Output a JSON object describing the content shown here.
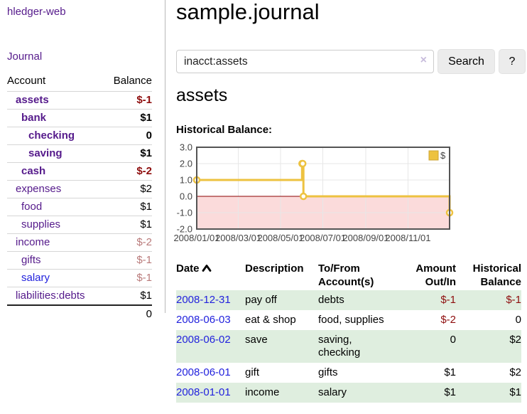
{
  "app": {
    "brand": "hledger-web",
    "nav_journal": "Journal"
  },
  "sidebar": {
    "account_header": "Account",
    "balance_header": "Balance",
    "accounts": [
      {
        "name": "assets",
        "depth": 0,
        "bold": true,
        "link": "purple",
        "balance": "$-1",
        "balance_style": "neg-strong"
      },
      {
        "name": "bank",
        "depth": 1,
        "bold": true,
        "link": "purple",
        "balance": "$1",
        "balance_style": "pos"
      },
      {
        "name": "checking",
        "depth": 2,
        "bold": true,
        "link": "purple",
        "balance": "0",
        "balance_style": "pos"
      },
      {
        "name": "saving",
        "depth": 2,
        "bold": true,
        "link": "purple",
        "balance": "$1",
        "balance_style": "pos"
      },
      {
        "name": "cash",
        "depth": 1,
        "bold": true,
        "link": "purple",
        "balance": "$-2",
        "balance_style": "neg-strong"
      },
      {
        "name": "expenses",
        "depth": 0,
        "bold": false,
        "link": "purple",
        "balance": "$2",
        "balance_style": "pos"
      },
      {
        "name": "food",
        "depth": 1,
        "bold": false,
        "link": "purple",
        "balance": "$1",
        "balance_style": "pos"
      },
      {
        "name": "supplies",
        "depth": 1,
        "bold": false,
        "link": "purple",
        "balance": "$1",
        "balance_style": "pos"
      },
      {
        "name": "income",
        "depth": 0,
        "bold": false,
        "link": "purple",
        "balance": "$-2",
        "balance_style": "neg-soft"
      },
      {
        "name": "gifts",
        "depth": 1,
        "bold": false,
        "link": "purple",
        "balance": "$-1",
        "balance_style": "neg-soft"
      },
      {
        "name": "salary",
        "depth": 1,
        "bold": false,
        "link": "blue",
        "balance": "$-1",
        "balance_style": "neg-soft"
      },
      {
        "name": "liabilities:debts",
        "depth": 0,
        "bold": false,
        "link": "purple",
        "balance": "$1",
        "balance_style": "pos"
      }
    ],
    "total": "0"
  },
  "header": {
    "title": "sample.journal"
  },
  "search": {
    "value": "inacct:assets",
    "clear_icon": "×",
    "button": "Search",
    "help": "?"
  },
  "account_page": {
    "title": "assets",
    "chart_label": "Historical Balance:"
  },
  "chart_data": {
    "type": "line",
    "step": true,
    "title": "Historical Balance",
    "legend_position": "top-right",
    "grid": true,
    "ylim": [
      -2,
      3
    ],
    "y_ticks": [
      3.0,
      2.0,
      1.0,
      0.0,
      -1.0,
      -2.0
    ],
    "x_range": [
      "2008/01/01",
      "2008/12/31"
    ],
    "x_ticks": [
      "2008/01/01",
      "2008/03/01",
      "2008/05/01",
      "2008/07/01",
      "2008/09/01",
      "2008/11/01"
    ],
    "series": [
      {
        "name": "$",
        "color": "#edc240",
        "points": [
          [
            "2008/01/01",
            1
          ],
          [
            "2008/06/01",
            2
          ],
          [
            "2008/06/02",
            2
          ],
          [
            "2008/06/03",
            0
          ],
          [
            "2008/12/31",
            -1
          ]
        ]
      }
    ],
    "negative_fill": "#fbdbdb",
    "zero_line_color": "#8b0000",
    "border_color": "#545454"
  },
  "register": {
    "columns": [
      {
        "label": "Date",
        "sort": "asc"
      },
      {
        "label": "Description"
      },
      {
        "label": "To/From Account(s)",
        "accts": true
      },
      {
        "label": "Amount Out/In",
        "align": "right"
      },
      {
        "label": "Historical Balance",
        "align": "right"
      }
    ],
    "rows": [
      {
        "date": "2008-12-31",
        "description": "pay off",
        "accounts": "debts",
        "amount": "$-1",
        "amount_neg": true,
        "balance": "$-1",
        "balance_neg": true
      },
      {
        "date": "2008-06-03",
        "description": "eat & shop",
        "accounts": "food, supplies",
        "amount": "$-2",
        "amount_neg": true,
        "balance": "0",
        "balance_neg": false
      },
      {
        "date": "2008-06-02",
        "description": "save",
        "accounts": "saving, checking",
        "amount": "0",
        "amount_neg": false,
        "balance": "$2",
        "balance_neg": false
      },
      {
        "date": "2008-06-01",
        "description": "gift",
        "accounts": "gifts",
        "amount": "$1",
        "amount_neg": false,
        "balance": "$2",
        "balance_neg": false
      },
      {
        "date": "2008-01-01",
        "description": "income",
        "accounts": "salary",
        "amount": "$1",
        "amount_neg": false,
        "balance": "$1",
        "balance_neg": false
      }
    ]
  },
  "colors": {
    "link_purple": "#551a8b",
    "link_blue": "#2222dd",
    "negative_strong": "#8e0d0d",
    "negative_soft": "#b97a7a",
    "row_stripe_green": "#dfeedf",
    "chart_series_gold": "#edc240",
    "chart_negative_pink": "#fbdbdb",
    "chart_zero_line": "#8b0000"
  }
}
